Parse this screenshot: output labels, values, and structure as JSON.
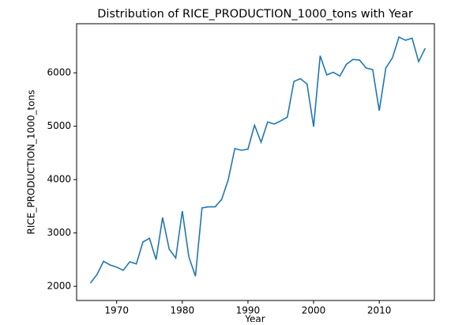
{
  "chart_data": {
    "type": "line",
    "title": "Distribution of RICE_PRODUCTION_1000_tons with Year",
    "xlabel": "Year",
    "ylabel": "RICE_PRODUCTION_1000_tons",
    "x": [
      1966,
      1967,
      1968,
      1969,
      1970,
      1971,
      1972,
      1973,
      1974,
      1975,
      1976,
      1977,
      1978,
      1979,
      1980,
      1981,
      1982,
      1983,
      1984,
      1985,
      1986,
      1987,
      1988,
      1989,
      1990,
      1991,
      1992,
      1993,
      1994,
      1995,
      1996,
      1997,
      1998,
      1999,
      2000,
      2001,
      2002,
      2003,
      2004,
      2005,
      2006,
      2007,
      2008,
      2009,
      2010,
      2011,
      2012,
      2013,
      2014,
      2015,
      2016,
      2017
    ],
    "series": [
      {
        "name": "RICE_PRODUCTION_1000_tons",
        "color": "#1f77b4",
        "values": [
          2060,
          2220,
          2470,
          2400,
          2360,
          2300,
          2460,
          2420,
          2830,
          2900,
          2500,
          3290,
          2700,
          2530,
          3410,
          2550,
          2190,
          3470,
          3490,
          3490,
          3630,
          4000,
          4580,
          4550,
          4570,
          5020,
          4700,
          5080,
          5040,
          5100,
          5170,
          5840,
          5890,
          5790,
          4990,
          6320,
          5960,
          6010,
          5940,
          6160,
          6250,
          6240,
          6090,
          6060,
          5290,
          6090,
          6280,
          6670,
          6610,
          6650,
          6210,
          6460
        ]
      }
    ],
    "xlim": [
      1963.9,
      2018.4
    ],
    "xticks": [
      1970,
      1980,
      1990,
      2000,
      2010
    ],
    "ylim": [
      1735,
      6920
    ],
    "yticks": [
      2000,
      3000,
      4000,
      5000,
      6000
    ],
    "grid": false
  }
}
